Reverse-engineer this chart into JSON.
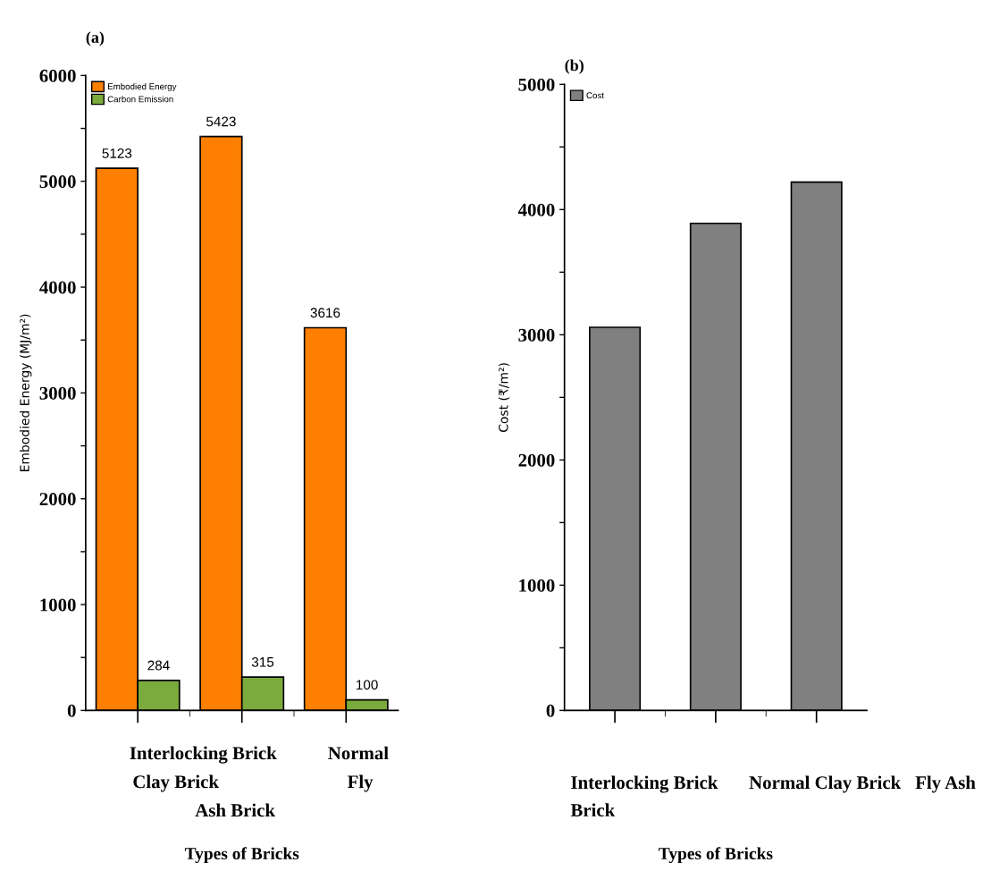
{
  "chart_data": [
    {
      "type": "bar",
      "title": "(a)",
      "xlabel": "Types of Bricks",
      "ylabel": "Embodied Energy (MJ/m²)",
      "categories": [
        null,
        null,
        null
      ],
      "series": [
        {
          "name": "Embodied Energy",
          "color": "#ff8000",
          "values": [
            5123,
            5423,
            3616
          ]
        },
        {
          "name": "Carbon Emission",
          "color": "#7aab3c",
          "values": [
            284,
            315,
            100
          ]
        }
      ],
      "data_labels": true,
      "ylim": [
        0,
        6000
      ],
      "yticks": [
        0,
        {
          "value": 500,
          "label": null
        },
        1000,
        {
          "value": 1500,
          "label": null
        },
        2000,
        {
          "value": 2500,
          "label": null
        },
        3000,
        {
          "value": 3500,
          "label": null
        },
        4000,
        {
          "value": 4500,
          "label": null
        },
        5000,
        {
          "value": 5500,
          "label": null
        },
        6000
      ],
      "tick_labels": "y",
      "legend": "top left",
      "grid": false,
      "annotations": [
        "Interlocking Brick",
        "Normal",
        "Clay Brick",
        "Fly",
        "Ash Brick"
      ]
    },
    {
      "type": "bar",
      "title": "(b)",
      "xlabel": "Types of Bricks",
      "ylabel": "Cost (₹/m²)",
      "categories": [
        null,
        null,
        null
      ],
      "series": [
        {
          "name": "Cost",
          "color": "#808080",
          "values": [
            3060,
            3890,
            4220
          ]
        }
      ],
      "ylim": [
        0,
        5000
      ],
      "yticks": [
        0,
        {
          "value": 500,
          "label": null
        },
        1000,
        {
          "value": 1500,
          "label": null
        },
        2000,
        {
          "value": 2500,
          "label": null
        },
        3000,
        {
          "value": 3500,
          "label": null
        },
        4000,
        {
          "value": 4500,
          "label": null
        },
        5000
      ],
      "tick_labels": "y",
      "legend": "top left",
      "grid": false,
      "annotations": [
        "Interlocking Brick",
        "Brick",
        "Normal Clay Brick",
        "Fly Ash"
      ]
    }
  ]
}
